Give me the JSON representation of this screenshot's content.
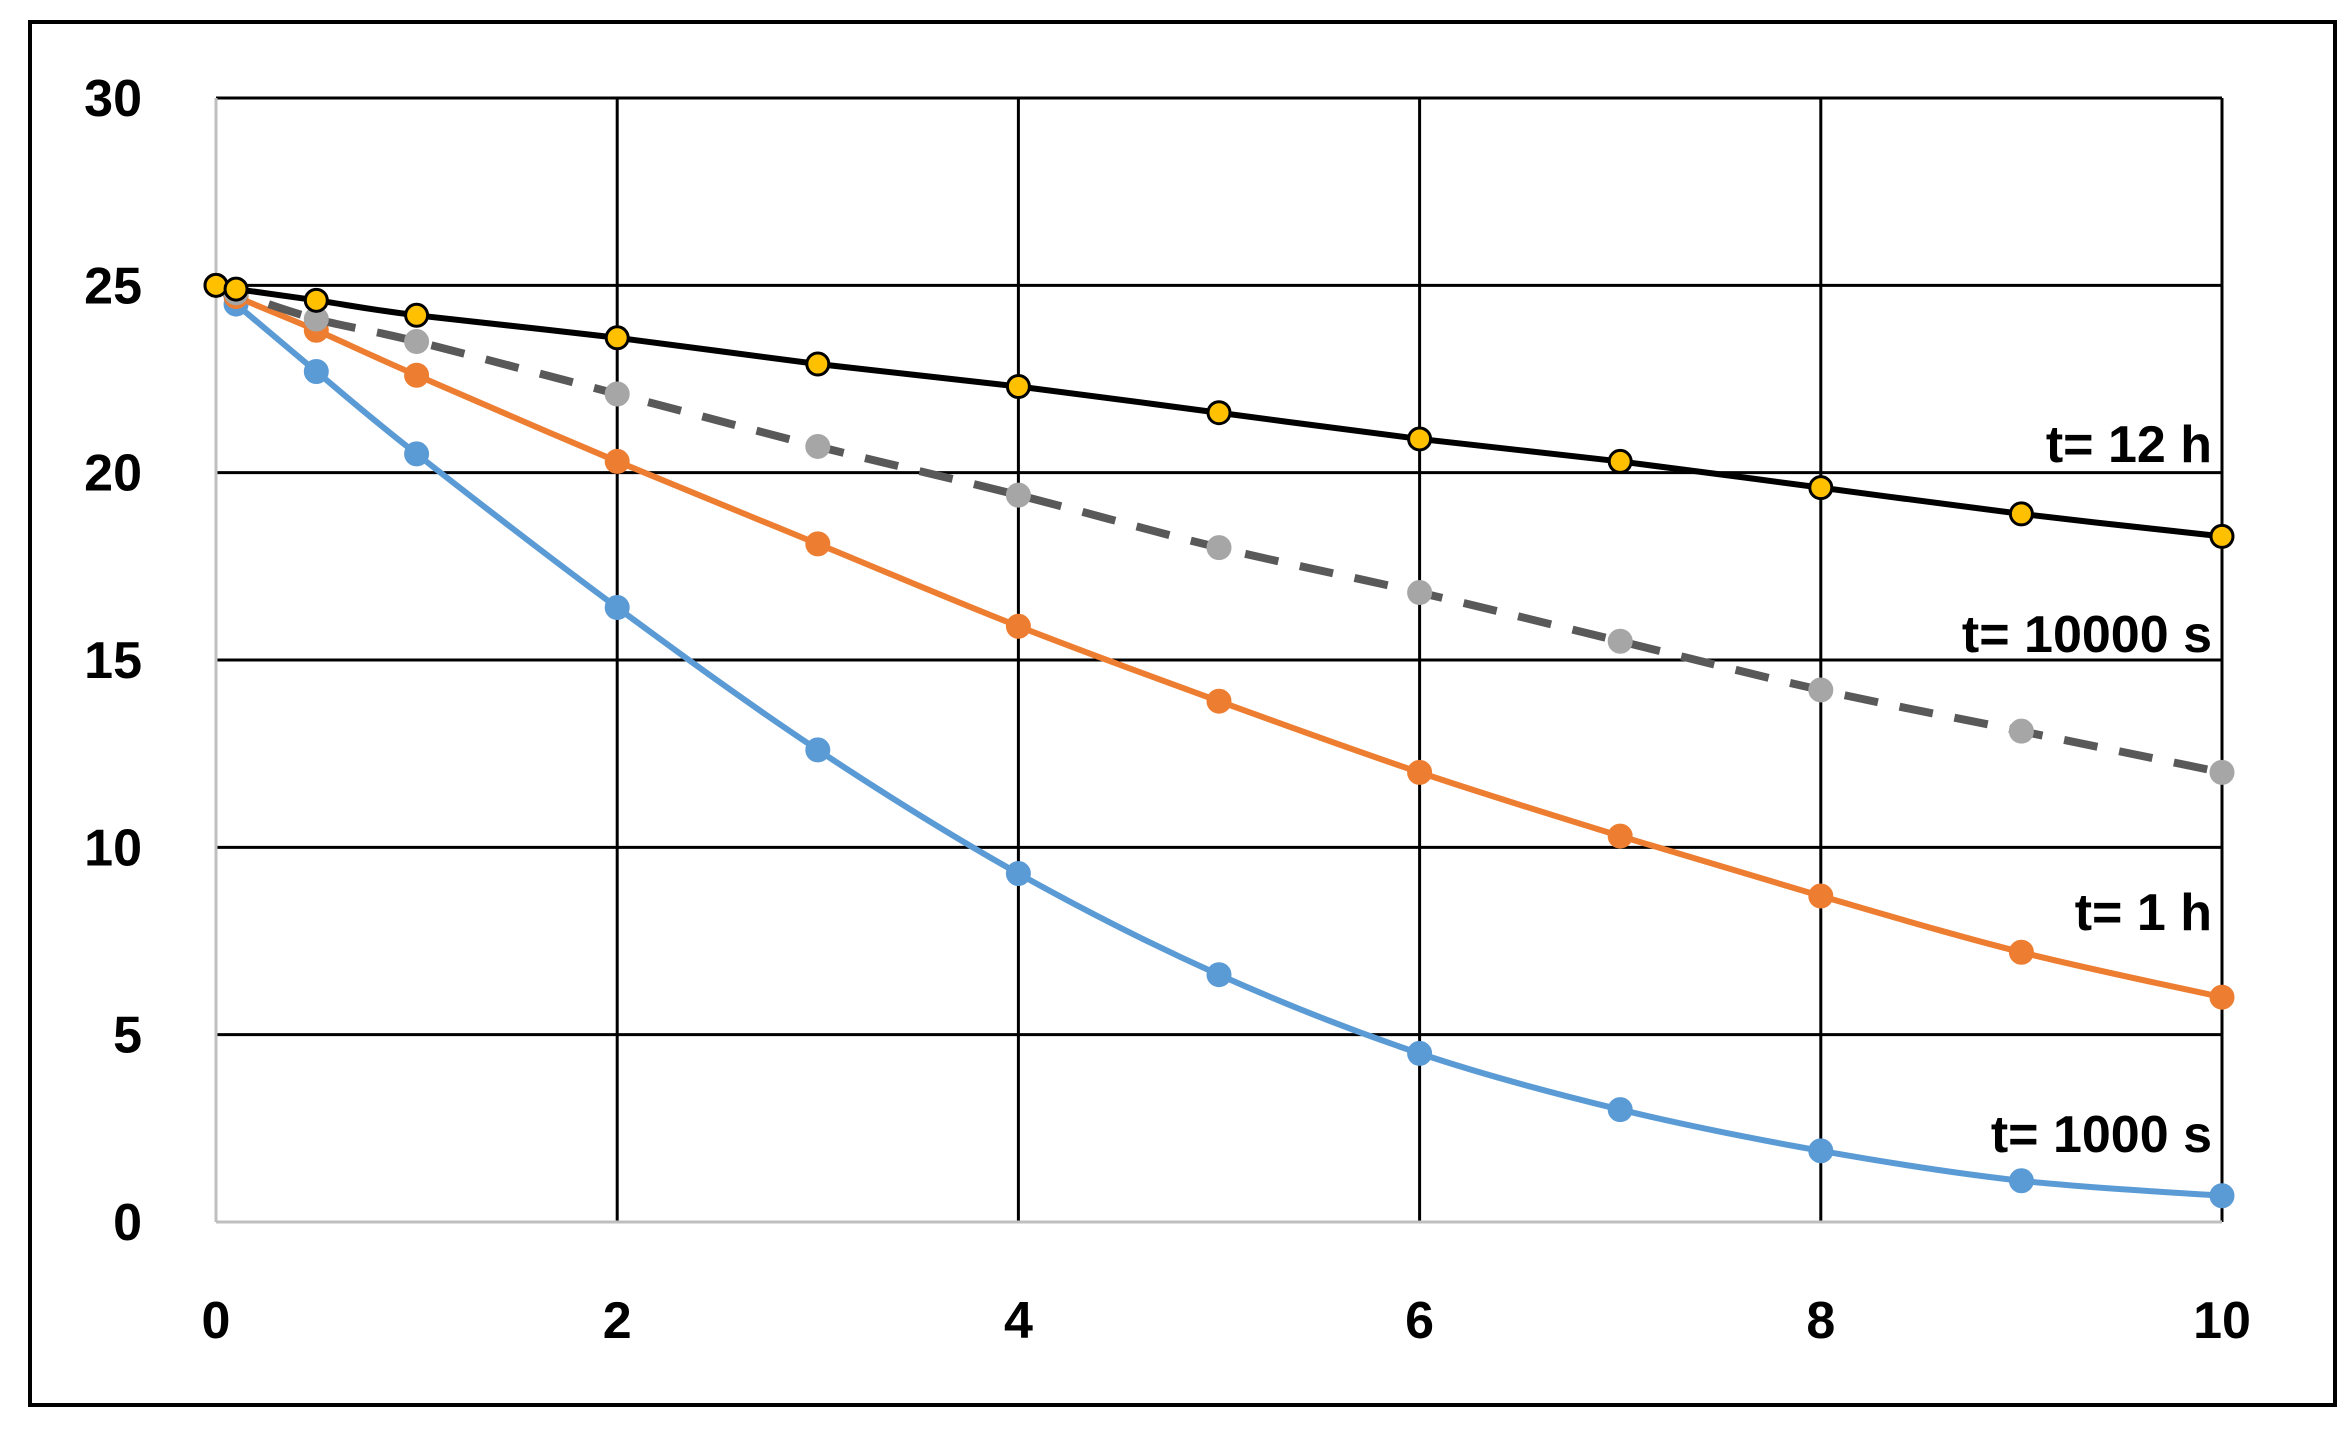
{
  "chart_data": {
    "type": "line",
    "title": "",
    "xlabel": "",
    "ylabel": "",
    "xlim": [
      0,
      10
    ],
    "ylim": [
      0,
      30
    ],
    "xticks": [
      0,
      2,
      4,
      6,
      8,
      10
    ],
    "yticks": [
      0,
      5,
      10,
      15,
      20,
      25,
      30
    ],
    "grid": true,
    "legend": "none",
    "series": [
      {
        "label": "t= 12 h",
        "color": "#000000",
        "marker_fill": "#FFC000",
        "marker_edge": "#000000",
        "dashed": false,
        "x": [
          0,
          0.1,
          0.5,
          1,
          2,
          3,
          4,
          5,
          6,
          7,
          8,
          9,
          10
        ],
        "y": [
          25.0,
          24.9,
          24.6,
          24.2,
          23.6,
          22.9,
          22.3,
          21.6,
          20.9,
          20.3,
          19.6,
          18.9,
          18.3
        ]
      },
      {
        "label": "t= 10000 s",
        "color": "#595959",
        "marker_fill": "#A6A6A6",
        "marker_edge": "#A6A6A6",
        "dashed": true,
        "x": [
          0,
          0.1,
          0.5,
          1,
          2,
          3,
          4,
          5,
          6,
          7,
          8,
          9,
          10
        ],
        "y": [
          25.0,
          24.8,
          24.1,
          23.5,
          22.1,
          20.7,
          19.4,
          18.0,
          16.8,
          15.5,
          14.2,
          13.1,
          12.0
        ]
      },
      {
        "label": "t= 1 h",
        "color": "#ED7D31",
        "marker_fill": "#ED7D31",
        "marker_edge": "#ED7D31",
        "dashed": false,
        "x": [
          0,
          0.1,
          0.5,
          1,
          2,
          3,
          4,
          5,
          6,
          7,
          8,
          9,
          10
        ],
        "y": [
          25.0,
          24.7,
          23.8,
          22.6,
          20.3,
          18.1,
          15.9,
          13.9,
          12.0,
          10.3,
          8.7,
          7.2,
          6.0
        ]
      },
      {
        "label": "t= 1000 s",
        "color": "#5B9BD5",
        "marker_fill": "#5B9BD5",
        "marker_edge": "#5B9BD5",
        "dashed": false,
        "x": [
          0,
          0.1,
          0.5,
          1,
          2,
          3,
          4,
          5,
          6,
          7,
          8,
          9,
          10
        ],
        "y": [
          25.0,
          24.5,
          22.7,
          20.5,
          16.4,
          12.6,
          9.3,
          6.6,
          4.5,
          3.0,
          1.9,
          1.1,
          0.7
        ]
      }
    ]
  }
}
